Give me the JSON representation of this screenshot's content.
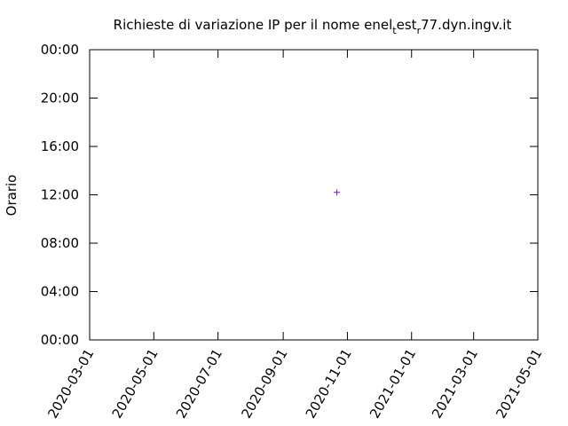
{
  "chart_data": {
    "type": "scatter",
    "title_parts": [
      "Richieste di variazione IP per il nome enel",
      "t",
      "est",
      "r",
      "77.dyn.ingv.it"
    ],
    "ylabel": "Orario",
    "series": [
      {
        "color": "#9400d3",
        "x": [
          "2020-10-22"
        ],
        "values": [
          12.2
        ]
      }
    ],
    "xlim": [
      "2020-03-01",
      "2021-05-01"
    ],
    "xticks": [
      "2020-03-01",
      "2020-05-01",
      "2020-07-01",
      "2020-09-01",
      "2020-11-01",
      "2021-01-01",
      "2021-03-01",
      "2021-05-01"
    ],
    "ylim": [
      0,
      24
    ],
    "yticks": [
      {
        "value": 0,
        "label": "00:00"
      },
      {
        "value": 4,
        "label": "04:00"
      },
      {
        "value": 8,
        "label": "08:00"
      },
      {
        "value": 12,
        "label": "12:00"
      },
      {
        "value": 16,
        "label": "16:00"
      },
      {
        "value": 20,
        "label": "20:00"
      },
      {
        "value": 24,
        "label": "00:00"
      }
    ]
  }
}
